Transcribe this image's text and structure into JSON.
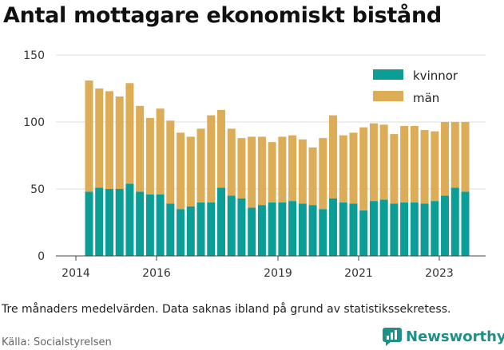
{
  "title": "Antal mottagare ekonomiskt bistånd",
  "note": "Tre månaders medelvärden. Data saknas ibland på grund av statistikssekretess.",
  "source": "Källa: Socialstyrelsen",
  "brand": "Newsworthy",
  "colors": {
    "kvinnor": "#0b9e96",
    "man": "#dcac56",
    "grid": "#dddddd",
    "brand": "#1f8f88"
  },
  "chart_data": {
    "type": "bar",
    "stacked": true,
    "ylim": [
      0,
      150
    ],
    "yticks": [
      0,
      50,
      100,
      150
    ],
    "xticks": [
      "2014",
      "2016",
      "2019",
      "2021",
      "2023"
    ],
    "legend": {
      "placement": "top-right"
    },
    "grid": true,
    "series": [
      {
        "name": "kvinnor",
        "values": [
          48,
          51,
          50,
          50,
          54,
          48,
          46,
          46,
          39,
          35,
          37,
          40,
          40,
          51,
          45,
          43,
          36,
          38,
          40,
          40,
          41,
          39,
          38,
          35,
          43,
          40,
          39,
          34,
          41,
          42,
          39,
          40,
          40,
          39,
          41,
          45,
          51,
          48
        ]
      },
      {
        "name": "män",
        "values": [
          83,
          74,
          73,
          69,
          75,
          64,
          57,
          64,
          62,
          57,
          52,
          55,
          65,
          58,
          50,
          45,
          53,
          51,
          45,
          49,
          49,
          48,
          43,
          53,
          62,
          50,
          53,
          62,
          58,
          56,
          52,
          57,
          57,
          55,
          52,
          55,
          49,
          52
        ]
      }
    ]
  }
}
